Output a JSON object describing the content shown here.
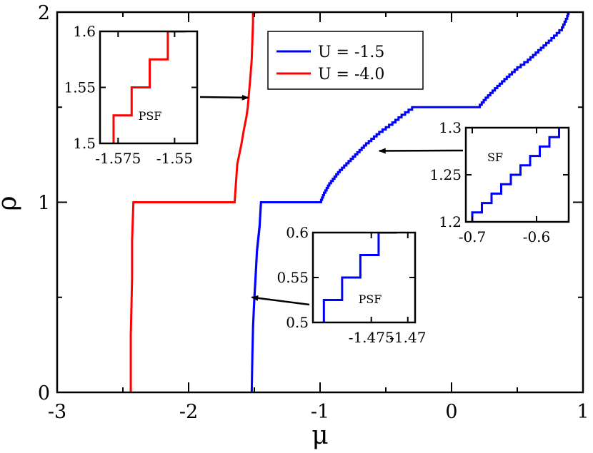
{
  "chart_data": {
    "type": "line",
    "xlabel": "μ",
    "ylabel": "ρ",
    "xlim": [
      -3,
      1
    ],
    "ylim": [
      0,
      2
    ],
    "x_ticks": [
      -3,
      -2,
      -1,
      0,
      1
    ],
    "x_tick_labels": [
      "-3",
      "-2",
      "-1",
      "0",
      "1"
    ],
    "y_ticks": [
      0,
      1,
      2
    ],
    "y_tick_labels": [
      "0",
      "1",
      "2"
    ],
    "legend": {
      "position": "top-center",
      "entries": [
        "U =  -1.5",
        "U =  -4.0"
      ]
    },
    "series": [
      {
        "name": "U =  -1.5",
        "color": "#0000ff",
        "x": [
          -1.52,
          -1.515,
          -1.51,
          -1.5,
          -1.49,
          -1.48,
          -1.46,
          -1.45,
          -1.0,
          -0.97,
          -0.93,
          -0.85,
          -0.75,
          -0.65,
          -0.55,
          -0.45,
          -0.38,
          -0.3,
          0.2,
          0.26,
          0.33,
          0.42,
          0.5,
          0.58,
          0.66,
          0.74,
          0.8,
          0.84,
          0.86,
          0.88,
          0.89
        ],
        "y": [
          0.0,
          0.2,
          0.35,
          0.5,
          0.62,
          0.75,
          0.88,
          1.0,
          1.0,
          1.05,
          1.1,
          1.17,
          1.24,
          1.31,
          1.37,
          1.42,
          1.46,
          1.5,
          1.5,
          1.55,
          1.6,
          1.66,
          1.71,
          1.75,
          1.8,
          1.85,
          1.89,
          1.92,
          1.95,
          1.98,
          2.0
        ],
        "staircase": true
      },
      {
        "name": "U =  -4.0",
        "color": "#ff0000",
        "x": [
          -2.44,
          -2.44,
          -2.43,
          -2.43,
          -2.42,
          -1.65,
          -1.63,
          -1.6,
          -1.58,
          -1.56,
          -1.55,
          -1.54,
          -1.53,
          -1.52,
          -1.515,
          -1.51,
          -1.51,
          -1.46
        ],
        "y": [
          0.0,
          0.3,
          0.6,
          0.8,
          1.0,
          1.0,
          1.2,
          1.3,
          1.38,
          1.45,
          1.5,
          1.58,
          1.66,
          1.75,
          1.85,
          1.95,
          2.0,
          2.0
        ],
        "staircase": false
      }
    ],
    "insets": [
      {
        "label": "PSF",
        "color": "#ff0000",
        "xlim": [
          -1.583,
          -1.54
        ],
        "ylim": [
          1.5,
          1.6
        ],
        "x_ticks": [
          -1.575,
          -1.55
        ],
        "x_tick_labels": [
          "-1.575",
          "-1.55"
        ],
        "y_ticks": [
          1.5,
          1.55,
          1.6
        ],
        "y_tick_labels": [
          "1.5",
          "1.55",
          "1.6"
        ],
        "steps": {
          "x": [
            -1.577,
            -1.577,
            -1.569,
            -1.569,
            -1.561,
            -1.561,
            -1.553,
            -1.553,
            -1.545,
            -1.545
          ],
          "y": [
            1.5,
            1.525,
            1.525,
            1.55,
            1.55,
            1.575,
            1.575,
            1.6,
            1.6,
            1.6
          ]
        },
        "arrow_to": {
          "x": -1.545,
          "y": 1.55
        }
      },
      {
        "label": "SF",
        "color": "#0000ff",
        "xlim": [
          -0.71,
          -0.55
        ],
        "ylim": [
          1.2,
          1.3
        ],
        "x_ticks": [
          -0.7,
          -0.6
        ],
        "x_tick_labels": [
          "-0.7",
          "-0.6"
        ],
        "y_ticks": [
          1.2,
          1.25,
          1.3
        ],
        "y_tick_labels": [
          "1.2",
          "1.25",
          "1.3"
        ],
        "steps": {
          "x": [
            -0.7,
            -0.7,
            -0.685,
            -0.685,
            -0.67,
            -0.67,
            -0.655,
            -0.655,
            -0.64,
            -0.64,
            -0.625,
            -0.625,
            -0.61,
            -0.61,
            -0.595,
            -0.595,
            -0.58,
            -0.58,
            -0.565,
            -0.565
          ],
          "y": [
            1.2,
            1.21,
            1.21,
            1.22,
            1.22,
            1.23,
            1.23,
            1.24,
            1.24,
            1.25,
            1.25,
            1.26,
            1.26,
            1.27,
            1.27,
            1.28,
            1.28,
            1.29,
            1.29,
            1.3
          ]
        },
        "arrow_to": {
          "x": -0.55,
          "y": 1.27
        }
      },
      {
        "label": "PSF",
        "color": "#0000ff",
        "xlim": [
          -1.483,
          -1.469
        ],
        "ylim": [
          0.5,
          0.6
        ],
        "x_ticks": [
          -1.475,
          -1.47
        ],
        "x_tick_labels": [
          "-1.475",
          "-1.47"
        ],
        "y_ticks": [
          0.5,
          0.55,
          0.6
        ],
        "y_tick_labels": [
          "0.5",
          "0.55",
          "0.6"
        ],
        "steps": {
          "x": [
            -1.4815,
            -1.4815,
            -1.479,
            -1.479,
            -1.4765,
            -1.4765,
            -1.474,
            -1.474,
            -1.4715,
            -1.4715
          ],
          "y": [
            0.5,
            0.525,
            0.525,
            0.55,
            0.55,
            0.575,
            0.575,
            0.6,
            0.6,
            0.6
          ]
        },
        "arrow_to": {
          "x": -1.52,
          "y": 0.5
        }
      }
    ]
  }
}
